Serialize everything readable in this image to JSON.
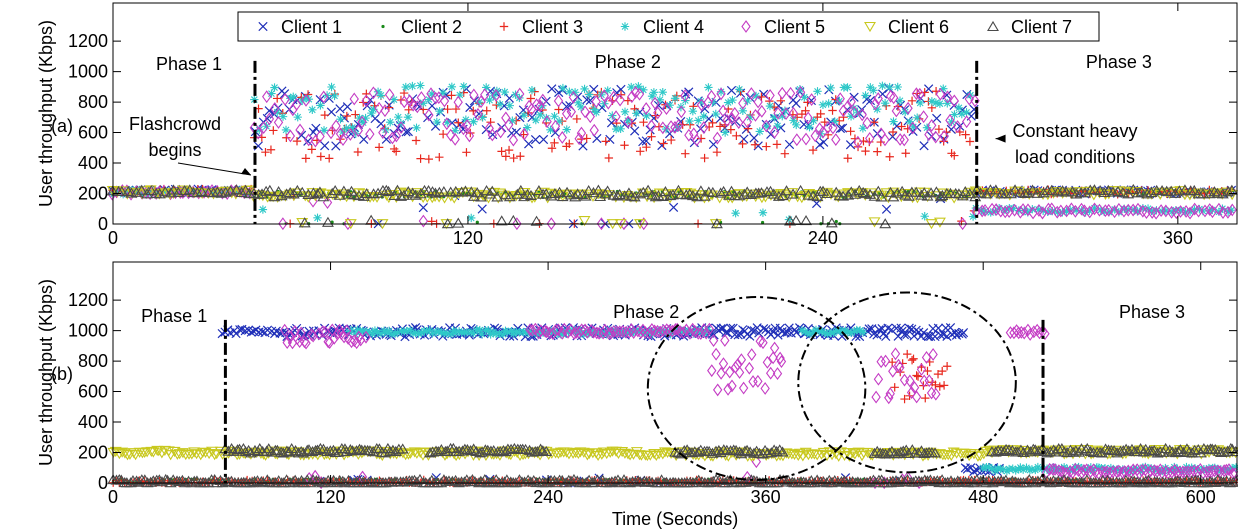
{
  "chart_data": [
    {
      "type": "scatter",
      "panel_label": "(a)",
      "xlabel": "",
      "ylabel": "User throughput (Kbps)",
      "xlim": [
        0,
        380
      ],
      "ylim": [
        0,
        1450
      ],
      "xticks": [
        "0",
        "120",
        "240",
        "360"
      ],
      "yticks": [
        "0",
        "200",
        "400",
        "600",
        "800",
        "1000",
        "1200"
      ],
      "grid": false,
      "legend": {
        "placement": "top-center",
        "entries": [
          "Client 1",
          "Client 2",
          "Client 3",
          "Client 4",
          "Client 5",
          "Client 6",
          "Client 7"
        ]
      },
      "phase_labels": [
        "Phase 1",
        "Phase 2",
        "Phase 3"
      ],
      "phase_boundaries": [
        48,
        292
      ],
      "annotations": [
        {
          "lines": [
            "Flashcrowd",
            "begins"
          ],
          "points_to": [
            48,
            230
          ]
        },
        {
          "lines": [
            "Constant heavy",
            "load conditions"
          ],
          "points_to": [
            272,
            560
          ]
        }
      ],
      "series": [
        {
          "name": "Client 1",
          "segments": [
            {
              "from": 0,
              "to": 48,
              "level": 215
            },
            {
              "from": 48,
              "to": 292,
              "level": 700,
              "spread": 380
            },
            {
              "from": 292,
              "to": 380,
              "level": 210
            }
          ]
        },
        {
          "name": "Client 2",
          "segments": [
            {
              "from": 0,
              "to": 48,
              "level": 215
            },
            {
              "from": 48,
              "to": 292,
              "level": 195,
              "spread": 40
            },
            {
              "from": 292,
              "to": 380,
              "level": 210
            }
          ]
        },
        {
          "name": "Client 3",
          "segments": [
            {
              "from": 0,
              "to": 48,
              "level": 215
            },
            {
              "from": 48,
              "to": 292,
              "level": 650,
              "spread": 450
            },
            {
              "from": 292,
              "to": 380,
              "level": 210
            }
          ]
        },
        {
          "name": "Client 4",
          "segments": [
            {
              "from": 0,
              "to": 48,
              "level": 210
            },
            {
              "from": 48,
              "to": 292,
              "level": 750,
              "spread": 320
            },
            {
              "from": 292,
              "to": 380,
              "level": 90
            }
          ]
        },
        {
          "name": "Client 5",
          "segments": [
            {
              "from": 0,
              "to": 48,
              "level": 205
            },
            {
              "from": 48,
              "to": 292,
              "level": 700,
              "spread": 330
            },
            {
              "from": 292,
              "to": 380,
              "level": 85
            }
          ]
        },
        {
          "name": "Client 6",
          "segments": [
            {
              "from": 0,
              "to": 48,
              "level": 210
            },
            {
              "from": 48,
              "to": 292,
              "level": 190,
              "spread": 40
            },
            {
              "from": 292,
              "to": 380,
              "level": 205
            }
          ]
        },
        {
          "name": "Client 7",
          "segments": [
            {
              "from": 0,
              "to": 48,
              "level": 212
            },
            {
              "from": 48,
              "to": 292,
              "level": 200,
              "spread": 45
            },
            {
              "from": 292,
              "to": 380,
              "level": 212
            }
          ]
        }
      ]
    },
    {
      "type": "scatter",
      "panel_label": "(b)",
      "xlabel": "Time (Seconds)",
      "ylabel": "User throughput (Kbps)",
      "xlim": [
        0,
        620
      ],
      "ylim": [
        0,
        1450
      ],
      "xticks": [
        "0",
        "120",
        "240",
        "360",
        "480",
        "600"
      ],
      "yticks": [
        "0",
        "200",
        "400",
        "600",
        "800",
        "1000",
        "1200"
      ],
      "grid": false,
      "phase_labels": [
        "Phase 1",
        "Phase 2",
        "Phase 3"
      ],
      "phase_boundaries": [
        62,
        513
      ],
      "highlight_ellipses": [
        {
          "x_center": 355,
          "y_center": 620,
          "x_radius": 60,
          "y_radius": 600
        },
        {
          "x_center": 438,
          "y_center": 660,
          "x_radius": 60,
          "y_radius": 590
        }
      ],
      "series": [
        {
          "name": "Client 1",
          "segments": [
            {
              "from": 60,
              "to": 95,
              "level": 995
            },
            {
              "from": 95,
              "to": 470,
              "level": 990,
              "spread": 60
            },
            {
              "from": 470,
              "to": 490,
              "level": 90
            }
          ]
        },
        {
          "name": "Client 2",
          "segments": [
            {
              "from": 0,
              "to": 620,
              "level": 10
            }
          ]
        },
        {
          "name": "Client 3",
          "segments": [
            {
              "from": 0,
              "to": 620,
              "level": 5
            },
            {
              "from": 430,
              "to": 460,
              "level": 700,
              "spread": 300
            }
          ]
        },
        {
          "name": "Client 4",
          "segments": [
            {
              "from": 130,
              "to": 330,
              "level": 990
            },
            {
              "from": 380,
              "to": 415,
              "level": 990
            },
            {
              "from": 480,
              "to": 620,
              "level": 90
            }
          ]
        },
        {
          "name": "Client 5",
          "segments": [
            {
              "from": 95,
              "to": 140,
              "level": 960,
              "spread": 90
            },
            {
              "from": 230,
              "to": 330,
              "level": 995
            },
            {
              "from": 330,
              "to": 370,
              "level": 780,
              "spread": 350
            },
            {
              "from": 420,
              "to": 455,
              "level": 700,
              "spread": 300
            },
            {
              "from": 495,
              "to": 515,
              "level": 990
            },
            {
              "from": 515,
              "to": 620,
              "level": 75
            }
          ]
        },
        {
          "name": "Client 6",
          "segments": [
            {
              "from": 0,
              "to": 62,
              "level": 200
            },
            {
              "from": 62,
              "to": 175,
              "level": 195
            },
            {
              "from": 175,
              "to": 320,
              "level": 195
            },
            {
              "from": 320,
              "to": 480,
              "level": 190
            },
            {
              "from": 480,
              "to": 620,
              "level": 205
            }
          ]
        },
        {
          "name": "Client 7",
          "segments": [
            {
              "from": 0,
              "to": 620,
              "level": 8
            },
            {
              "from": 62,
              "to": 160,
              "level": 212
            },
            {
              "from": 175,
              "to": 240,
              "level": 212
            },
            {
              "from": 310,
              "to": 370,
              "level": 205
            },
            {
              "from": 420,
              "to": 455,
              "level": 205
            },
            {
              "from": 485,
              "to": 620,
              "level": 212
            }
          ]
        }
      ]
    }
  ],
  "colors": {
    "Client 1": "#1f2fb8",
    "Client 2": "#1a8a1a",
    "Client 3": "#e8281e",
    "Client 4": "#2ec8c8",
    "Client 5": "#c43cc4",
    "Client 6": "#c8c81e",
    "Client 7": "#4a4a4a"
  },
  "markers": {
    "Client 1": "x-icon",
    "Client 2": "dot-icon",
    "Client 3": "plus-icon",
    "Client 4": "asterisk-icon",
    "Client 5": "diamond-icon",
    "Client 6": "down-triangle-icon",
    "Client 7": "up-triangle-icon"
  }
}
